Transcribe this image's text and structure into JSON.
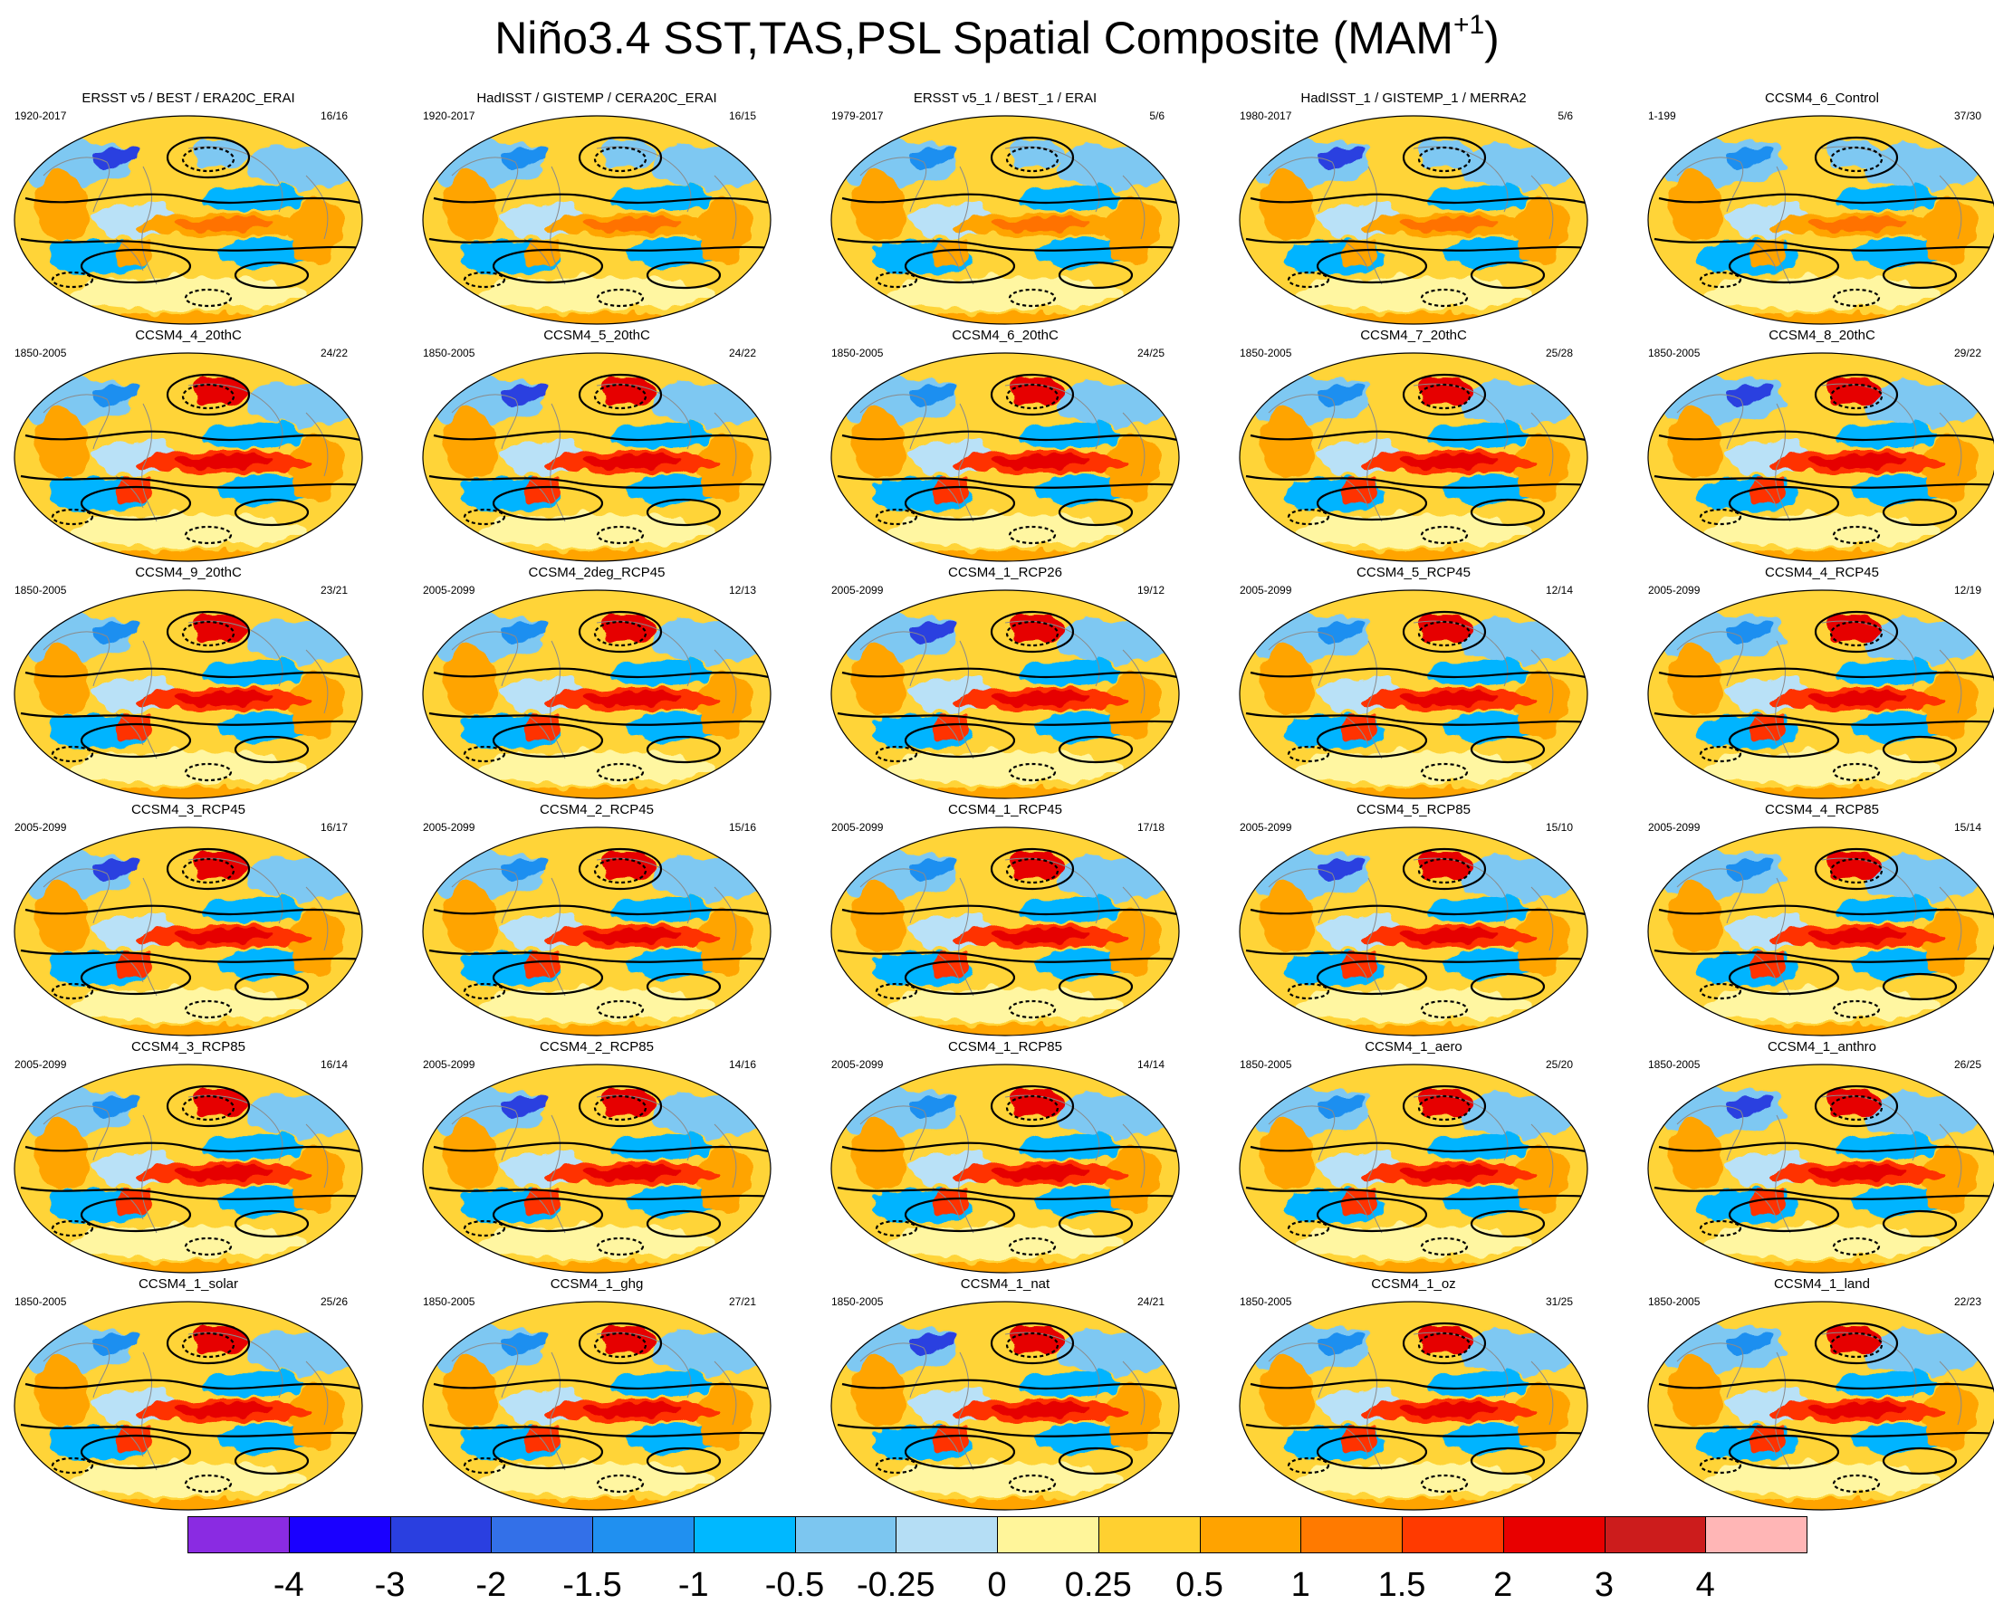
{
  "title": {
    "main": "Niño3.4 SST,TAS,PSL Spatial Composite (MAM",
    "sup": "+1",
    "tail": ")"
  },
  "colors": {
    "fill_scale": [
      "#7f1fe8",
      "#1a00ff",
      "#2c3fe0",
      "#3474e8",
      "#1f8ff0",
      "#00b4ff",
      "#7ec8f2",
      "#b9e1f7",
      "#fff6a1",
      "#ffd438",
      "#ffa400",
      "#ff7200",
      "#ff3000",
      "#e60000",
      "#c81e1e",
      "#ffb4b4"
    ]
  },
  "panels": [
    {
      "title": "ERSST v5 / BEST / ERA20C_ERAI",
      "years": "1920-2017",
      "count": "16/16"
    },
    {
      "title": "HadISST / GISTEMP / CERA20C_ERAI",
      "years": "1920-2017",
      "count": "16/15"
    },
    {
      "title": "ERSST v5_1 / BEST_1 / ERAI",
      "years": "1979-2017",
      "count": "5/6"
    },
    {
      "title": "HadISST_1 / GISTEMP_1 / MERRA2",
      "years": "1980-2017",
      "count": "5/6"
    },
    {
      "title": "CCSM4_6_Control",
      "years": "1-199",
      "count": "37/30"
    },
    {
      "title": "CCSM4_4_20thC",
      "years": "1850-2005",
      "count": "24/22"
    },
    {
      "title": "CCSM4_5_20thC",
      "years": "1850-2005",
      "count": "24/22"
    },
    {
      "title": "CCSM4_6_20thC",
      "years": "1850-2005",
      "count": "24/25"
    },
    {
      "title": "CCSM4_7_20thC",
      "years": "1850-2005",
      "count": "25/28"
    },
    {
      "title": "CCSM4_8_20thC",
      "years": "1850-2005",
      "count": "29/22"
    },
    {
      "title": "CCSM4_9_20thC",
      "years": "1850-2005",
      "count": "23/21"
    },
    {
      "title": "CCSM4_2deg_RCP45",
      "years": "2005-2099",
      "count": "12/13"
    },
    {
      "title": "CCSM4_1_RCP26",
      "years": "2005-2099",
      "count": "19/12"
    },
    {
      "title": "CCSM4_5_RCP45",
      "years": "2005-2099",
      "count": "12/14"
    },
    {
      "title": "CCSM4_4_RCP45",
      "years": "2005-2099",
      "count": "12/19"
    },
    {
      "title": "CCSM4_3_RCP45",
      "years": "2005-2099",
      "count": "16/17"
    },
    {
      "title": "CCSM4_2_RCP45",
      "years": "2005-2099",
      "count": "15/16"
    },
    {
      "title": "CCSM4_1_RCP45",
      "years": "2005-2099",
      "count": "17/18"
    },
    {
      "title": "CCSM4_5_RCP85",
      "years": "2005-2099",
      "count": "15/10"
    },
    {
      "title": "CCSM4_4_RCP85",
      "years": "2005-2099",
      "count": "15/14"
    },
    {
      "title": "CCSM4_3_RCP85",
      "years": "2005-2099",
      "count": "16/14"
    },
    {
      "title": "CCSM4_2_RCP85",
      "years": "2005-2099",
      "count": "14/16"
    },
    {
      "title": "CCSM4_1_RCP85",
      "years": "2005-2099",
      "count": "14/14"
    },
    {
      "title": "CCSM4_1_aero",
      "years": "1850-2005",
      "count": "25/20"
    },
    {
      "title": "CCSM4_1_anthro",
      "years": "1850-2005",
      "count": "26/25"
    },
    {
      "title": "CCSM4_1_solar",
      "years": "1850-2005",
      "count": "25/26"
    },
    {
      "title": "CCSM4_1_ghg",
      "years": "1850-2005",
      "count": "27/21"
    },
    {
      "title": "CCSM4_1_nat",
      "years": "1850-2005",
      "count": "24/21"
    },
    {
      "title": "CCSM4_1_oz",
      "years": "1850-2005",
      "count": "31/25"
    },
    {
      "title": "CCSM4_1_land",
      "years": "1850-2005",
      "count": "22/23"
    }
  ],
  "colorbar": {
    "colors": [
      "#8a2be2",
      "#1a00ff",
      "#2a3fe0",
      "#3370e8",
      "#2090f0",
      "#00b8ff",
      "#7cc6f0",
      "#b5def5",
      "#fff59a",
      "#ffd030",
      "#ffa300",
      "#ff7a00",
      "#ff3a00",
      "#e80000",
      "#cc1c1c",
      "#ffb6b6"
    ],
    "labels": [
      "-4",
      "-3",
      "-2",
      "-1.5",
      "-1",
      "-0.5",
      "-0.25",
      "0",
      "0.25",
      "0.5",
      "1",
      "1.5",
      "2",
      "3",
      "4"
    ]
  }
}
